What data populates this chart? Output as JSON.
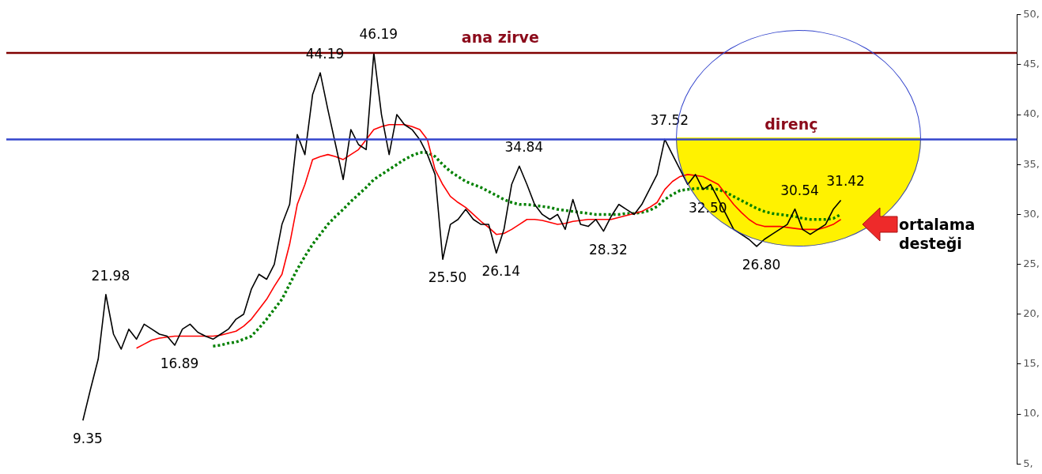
{
  "chart_data": {
    "type": "line",
    "categories": [
      null,
      null,
      null,
      null,
      null,
      null,
      null,
      null,
      null,
      null,
      null,
      null,
      null,
      null,
      null,
      null,
      null,
      null,
      null,
      null,
      null,
      null,
      null,
      null,
      null,
      null,
      null,
      null,
      null,
      null,
      null,
      null,
      null,
      null,
      null,
      null,
      null,
      null,
      null,
      null,
      null,
      null,
      null,
      null,
      null,
      null,
      null,
      null,
      null,
      null,
      null,
      null,
      null,
      null,
      null,
      null,
      null,
      null,
      null,
      null,
      null,
      null,
      null,
      null,
      null,
      null,
      null,
      null,
      null,
      null,
      null,
      null,
      null,
      null,
      null,
      null,
      null,
      null,
      null,
      null,
      null,
      null,
      null,
      null,
      null,
      null,
      null,
      null,
      null,
      null,
      null,
      null,
      null,
      null,
      null,
      null,
      null,
      null,
      null,
      null,
      null,
      null,
      null,
      null,
      null,
      null,
      null,
      null,
      null,
      null,
      null,
      null,
      null,
      null,
      null,
      null,
      null,
      null,
      null,
      null,
      null,
      null,
      null,
      null,
      null,
      null,
      null,
      null,
      null,
      null,
      null,
      null,
      null
    ],
    "series": [
      {
        "color": "#000000",
        "line_style": "solid",
        "values": [
          null,
          null,
          null,
          null,
          null,
          null,
          null,
          null,
          null,
          null,
          9.35,
          12.5,
          15.5,
          21.98,
          18,
          16.5,
          18.5,
          17.5,
          19,
          18.5,
          18,
          17.8,
          16.89,
          18.5,
          19,
          18.2,
          17.8,
          17.5,
          18,
          18.5,
          19.5,
          20,
          22.5,
          24,
          23.5,
          25,
          29,
          31,
          38,
          36,
          42,
          44.19,
          40.5,
          37,
          33.5,
          38.5,
          37,
          36.5,
          46.19,
          40,
          36,
          40,
          39,
          38.5,
          37.5,
          36,
          34,
          25.5,
          29,
          29.5,
          30.5,
          29.5,
          29,
          29,
          26.14,
          28.5,
          33,
          34.84,
          33,
          31,
          30,
          29.5,
          30,
          28.5,
          31.5,
          29,
          28.8,
          29.5,
          28.32,
          29.8,
          31,
          30.5,
          30,
          31,
          32.5,
          34,
          37.52,
          36,
          34.5,
          33,
          34,
          32.5,
          33,
          31.5,
          30,
          28.5,
          28,
          27.5,
          26.8,
          27.5,
          28,
          28.5,
          29,
          30.54,
          28.5,
          28,
          28.5,
          29,
          30.5,
          31.42,
          null,
          null,
          null,
          null,
          null,
          null,
          null,
          null,
          null,
          null,
          null,
          null,
          null,
          null,
          null,
          null,
          null,
          null,
          null,
          null,
          null,
          null,
          null
        ],
        "value_labels": [
          null,
          null,
          null,
          null,
          null,
          null,
          null,
          null,
          null,
          null,
          "9.35",
          null,
          null,
          "21.98",
          null,
          null,
          null,
          null,
          null,
          null,
          null,
          null,
          "16.89",
          null,
          null,
          null,
          null,
          null,
          null,
          null,
          null,
          null,
          null,
          null,
          null,
          null,
          null,
          null,
          null,
          null,
          null,
          "44.19",
          null,
          null,
          null,
          null,
          null,
          null,
          "46.19",
          null,
          null,
          null,
          null,
          null,
          null,
          null,
          null,
          "25.50",
          null,
          null,
          null,
          null,
          null,
          null,
          "26.14",
          null,
          null,
          "34.84",
          null,
          null,
          null,
          null,
          null,
          null,
          null,
          null,
          null,
          null,
          "28.32",
          null,
          null,
          null,
          null,
          null,
          null,
          null,
          "37.52",
          null,
          null,
          null,
          null,
          "32.50",
          null,
          null,
          null,
          null,
          null,
          null,
          "26.80",
          null,
          null,
          null,
          null,
          "30.54",
          null,
          null,
          null,
          null,
          null,
          "31.42",
          null,
          null,
          null,
          null,
          null,
          null,
          null,
          null,
          null,
          null,
          null,
          null,
          null,
          null,
          null,
          null,
          null,
          null,
          null,
          null,
          null,
          null,
          null
        ]
      },
      {
        "color": "#ff0000",
        "line_style": "solid",
        "values": [
          null,
          null,
          null,
          null,
          null,
          null,
          null,
          null,
          null,
          null,
          null,
          null,
          null,
          null,
          null,
          null,
          null,
          16.6,
          17,
          17.4,
          17.6,
          17.7,
          17.8,
          17.8,
          17.8,
          17.8,
          17.8,
          17.8,
          17.9,
          18.1,
          18.3,
          18.8,
          19.5,
          20.5,
          21.5,
          22.8,
          24,
          27,
          31,
          33,
          35.5,
          35.8,
          36,
          35.8,
          35.5,
          36,
          36.5,
          37.5,
          38.5,
          38.8,
          39,
          39,
          39,
          38.8,
          38.5,
          37.5,
          34.5,
          33,
          31.8,
          31.2,
          30.7,
          30,
          29.3,
          28.7,
          28,
          28.1,
          28.5,
          29,
          29.5,
          29.5,
          29.4,
          29.2,
          29,
          29.1,
          29.3,
          29.4,
          29.5,
          29.5,
          29.5,
          29.5,
          29.7,
          29.9,
          30.1,
          30.3,
          30.7,
          31.2,
          32.5,
          33.3,
          33.8,
          34,
          33.9,
          33.8,
          33.4,
          33,
          32,
          31,
          30.2,
          29.5,
          29,
          28.8,
          28.8,
          28.8,
          28.7,
          28.6,
          28.5,
          28.5,
          28.5,
          28.7,
          29,
          29.5,
          null,
          null,
          null,
          null,
          null,
          null,
          null,
          null,
          null,
          null,
          null,
          null,
          null,
          null,
          null,
          null,
          null,
          null,
          null,
          null,
          null,
          null,
          null
        ]
      },
      {
        "color": "#008000",
        "line_style": "dotted",
        "values": [
          null,
          null,
          null,
          null,
          null,
          null,
          null,
          null,
          null,
          null,
          null,
          null,
          null,
          null,
          null,
          null,
          null,
          null,
          null,
          null,
          null,
          null,
          null,
          null,
          null,
          null,
          null,
          16.8,
          16.9,
          17.1,
          17.2,
          17.5,
          17.8,
          18.6,
          19.5,
          20.5,
          21.5,
          23,
          24.5,
          25.8,
          27,
          28,
          29,
          29.8,
          30.5,
          31.3,
          32,
          32.7,
          33.5,
          34,
          34.5,
          35,
          35.5,
          35.9,
          36.2,
          36.2,
          35.8,
          35,
          34.3,
          33.8,
          33.3,
          33,
          32.7,
          32.3,
          31.9,
          31.5,
          31.2,
          31,
          31,
          30.9,
          30.8,
          30.7,
          30.5,
          30.4,
          30.3,
          30.2,
          30.1,
          30,
          30,
          30,
          30,
          30.1,
          30.1,
          30.2,
          30.4,
          30.8,
          31.5,
          32,
          32.4,
          32.5,
          32.6,
          32.6,
          32.6,
          32.5,
          32.2,
          31.8,
          31.4,
          31,
          30.6,
          30.3,
          30.1,
          30,
          29.9,
          29.8,
          29.6,
          29.5,
          29.5,
          29.5,
          29.6,
          30,
          null,
          null,
          null,
          null,
          null,
          null,
          null,
          null,
          null,
          null,
          null,
          null,
          null,
          null,
          null,
          null,
          null,
          null,
          null,
          null,
          null,
          null,
          null
        ]
      }
    ],
    "ylim": [
      5,
      50
    ],
    "yticks": [
      {
        "value": 5,
        "label": "5,"
      },
      {
        "value": 10,
        "label": "10,"
      },
      {
        "value": 15,
        "label": "15,"
      },
      {
        "value": 20,
        "label": "20,"
      },
      {
        "value": 25,
        "label": "25,"
      },
      {
        "value": 30,
        "label": "30,"
      },
      {
        "value": 35,
        "label": "35,"
      },
      {
        "value": 40,
        "label": "40,"
      },
      {
        "value": 45,
        "label": "45,"
      },
      {
        "value": 50,
        "label": "50,"
      }
    ],
    "tick_labels": "y",
    "grid": false,
    "ref_lines": [
      {
        "axis": "y",
        "value": 46.19,
        "label": "ana zirve",
        "color": "#800000"
      },
      {
        "axis": "y",
        "value": 37.52,
        "label": "direnç",
        "color": "#3344cc"
      }
    ],
    "annotations": [
      "ortalama desteği"
    ]
  }
}
